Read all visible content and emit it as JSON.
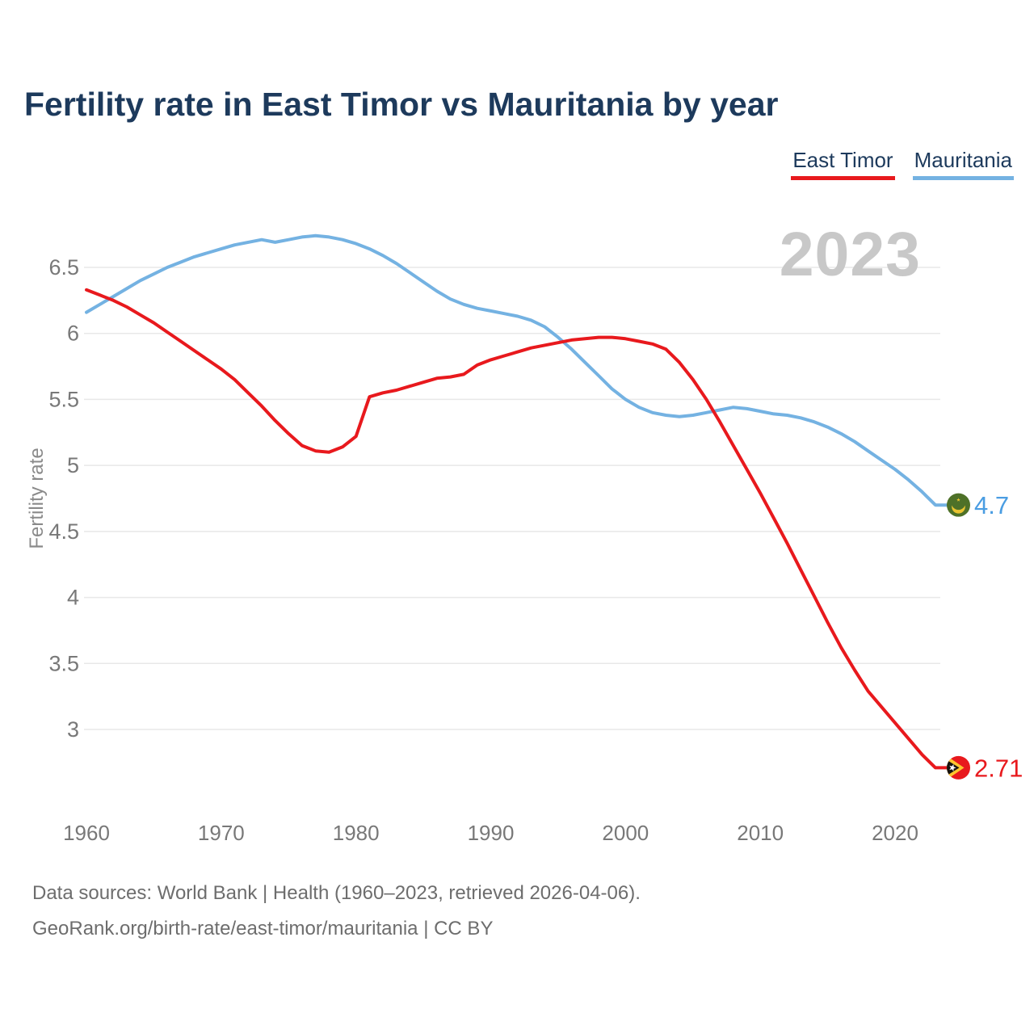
{
  "page": {
    "title": "Fertility rate in East Timor vs Mauritania by year",
    "watermark": "2023",
    "footer_line1": "Data sources: World Bank | Health (1960–2023, retrieved 2026-04-06).",
    "footer_line2": "GeoRank.org/birth-rate/east-timor/mauritania | CC BY"
  },
  "legend": {
    "items": [
      {
        "label": "East Timor",
        "color": "#e8191d"
      },
      {
        "label": "Mauritania",
        "color": "#74b2e2"
      }
    ]
  },
  "colors": {
    "title": "#1d3a5c",
    "axis_text": "#787878",
    "gridline": "#e8e8e8",
    "watermark": "#c8c8c8",
    "footer": "#6d6d6d"
  },
  "chart_data": {
    "type": "line",
    "title": "Fertility rate in East Timor vs Mauritania by year",
    "xlabel": "",
    "ylabel": "Fertility rate",
    "watermark_year": "2023",
    "grid": "horizontal",
    "legend_position": "top-right",
    "xlim": [
      1960,
      2023
    ],
    "ylim": [
      2.55,
      6.85
    ],
    "x_ticks": [
      1960,
      1970,
      1980,
      1990,
      2000,
      2010,
      2020
    ],
    "y_ticks": [
      3,
      3.5,
      4,
      4.5,
      5,
      5.5,
      6,
      6.5
    ],
    "x": [
      1960,
      1961,
      1962,
      1963,
      1964,
      1965,
      1966,
      1967,
      1968,
      1969,
      1970,
      1971,
      1972,
      1973,
      1974,
      1975,
      1976,
      1977,
      1978,
      1979,
      1980,
      1981,
      1982,
      1983,
      1984,
      1985,
      1986,
      1987,
      1988,
      1989,
      1990,
      1991,
      1992,
      1993,
      1994,
      1995,
      1996,
      1997,
      1998,
      1999,
      2000,
      2001,
      2002,
      2003,
      2004,
      2005,
      2006,
      2007,
      2008,
      2009,
      2010,
      2011,
      2012,
      2013,
      2014,
      2015,
      2016,
      2017,
      2018,
      2019,
      2020,
      2021,
      2022,
      2023
    ],
    "series": [
      {
        "name": "East Timor",
        "color": "#e8191d",
        "label_color": "#e8191d",
        "end_label": "2.71",
        "flag_icon": "east-timor-flag-icon",
        "values": [
          6.33,
          6.29,
          6.25,
          6.2,
          6.14,
          6.08,
          6.01,
          5.94,
          5.87,
          5.8,
          5.73,
          5.65,
          5.55,
          5.45,
          5.34,
          5.24,
          5.15,
          5.11,
          5.1,
          5.14,
          5.22,
          5.52,
          5.55,
          5.57,
          5.6,
          5.63,
          5.66,
          5.67,
          5.69,
          5.76,
          5.8,
          5.83,
          5.86,
          5.89,
          5.91,
          5.93,
          5.95,
          5.96,
          5.97,
          5.97,
          5.96,
          5.94,
          5.92,
          5.88,
          5.78,
          5.65,
          5.5,
          5.33,
          5.15,
          4.97,
          4.79,
          4.6,
          4.41,
          4.21,
          4.01,
          3.81,
          3.62,
          3.45,
          3.29,
          3.17,
          3.05,
          2.93,
          2.81,
          2.71
        ]
      },
      {
        "name": "Mauritania",
        "color": "#74b2e2",
        "label_color": "#4a9de2",
        "end_label": "4.7",
        "flag_icon": "mauritania-flag-icon",
        "values": [
          6.16,
          6.22,
          6.28,
          6.34,
          6.4,
          6.45,
          6.5,
          6.54,
          6.58,
          6.61,
          6.64,
          6.67,
          6.69,
          6.71,
          6.69,
          6.71,
          6.73,
          6.74,
          6.73,
          6.71,
          6.68,
          6.64,
          6.59,
          6.53,
          6.46,
          6.39,
          6.32,
          6.26,
          6.22,
          6.19,
          6.17,
          6.15,
          6.13,
          6.1,
          6.05,
          5.97,
          5.88,
          5.78,
          5.68,
          5.58,
          5.5,
          5.44,
          5.4,
          5.38,
          5.37,
          5.38,
          5.4,
          5.42,
          5.44,
          5.43,
          5.41,
          5.39,
          5.38,
          5.36,
          5.33,
          5.29,
          5.24,
          5.18,
          5.11,
          5.04,
          4.97,
          4.89,
          4.8,
          4.7
        ]
      }
    ]
  }
}
